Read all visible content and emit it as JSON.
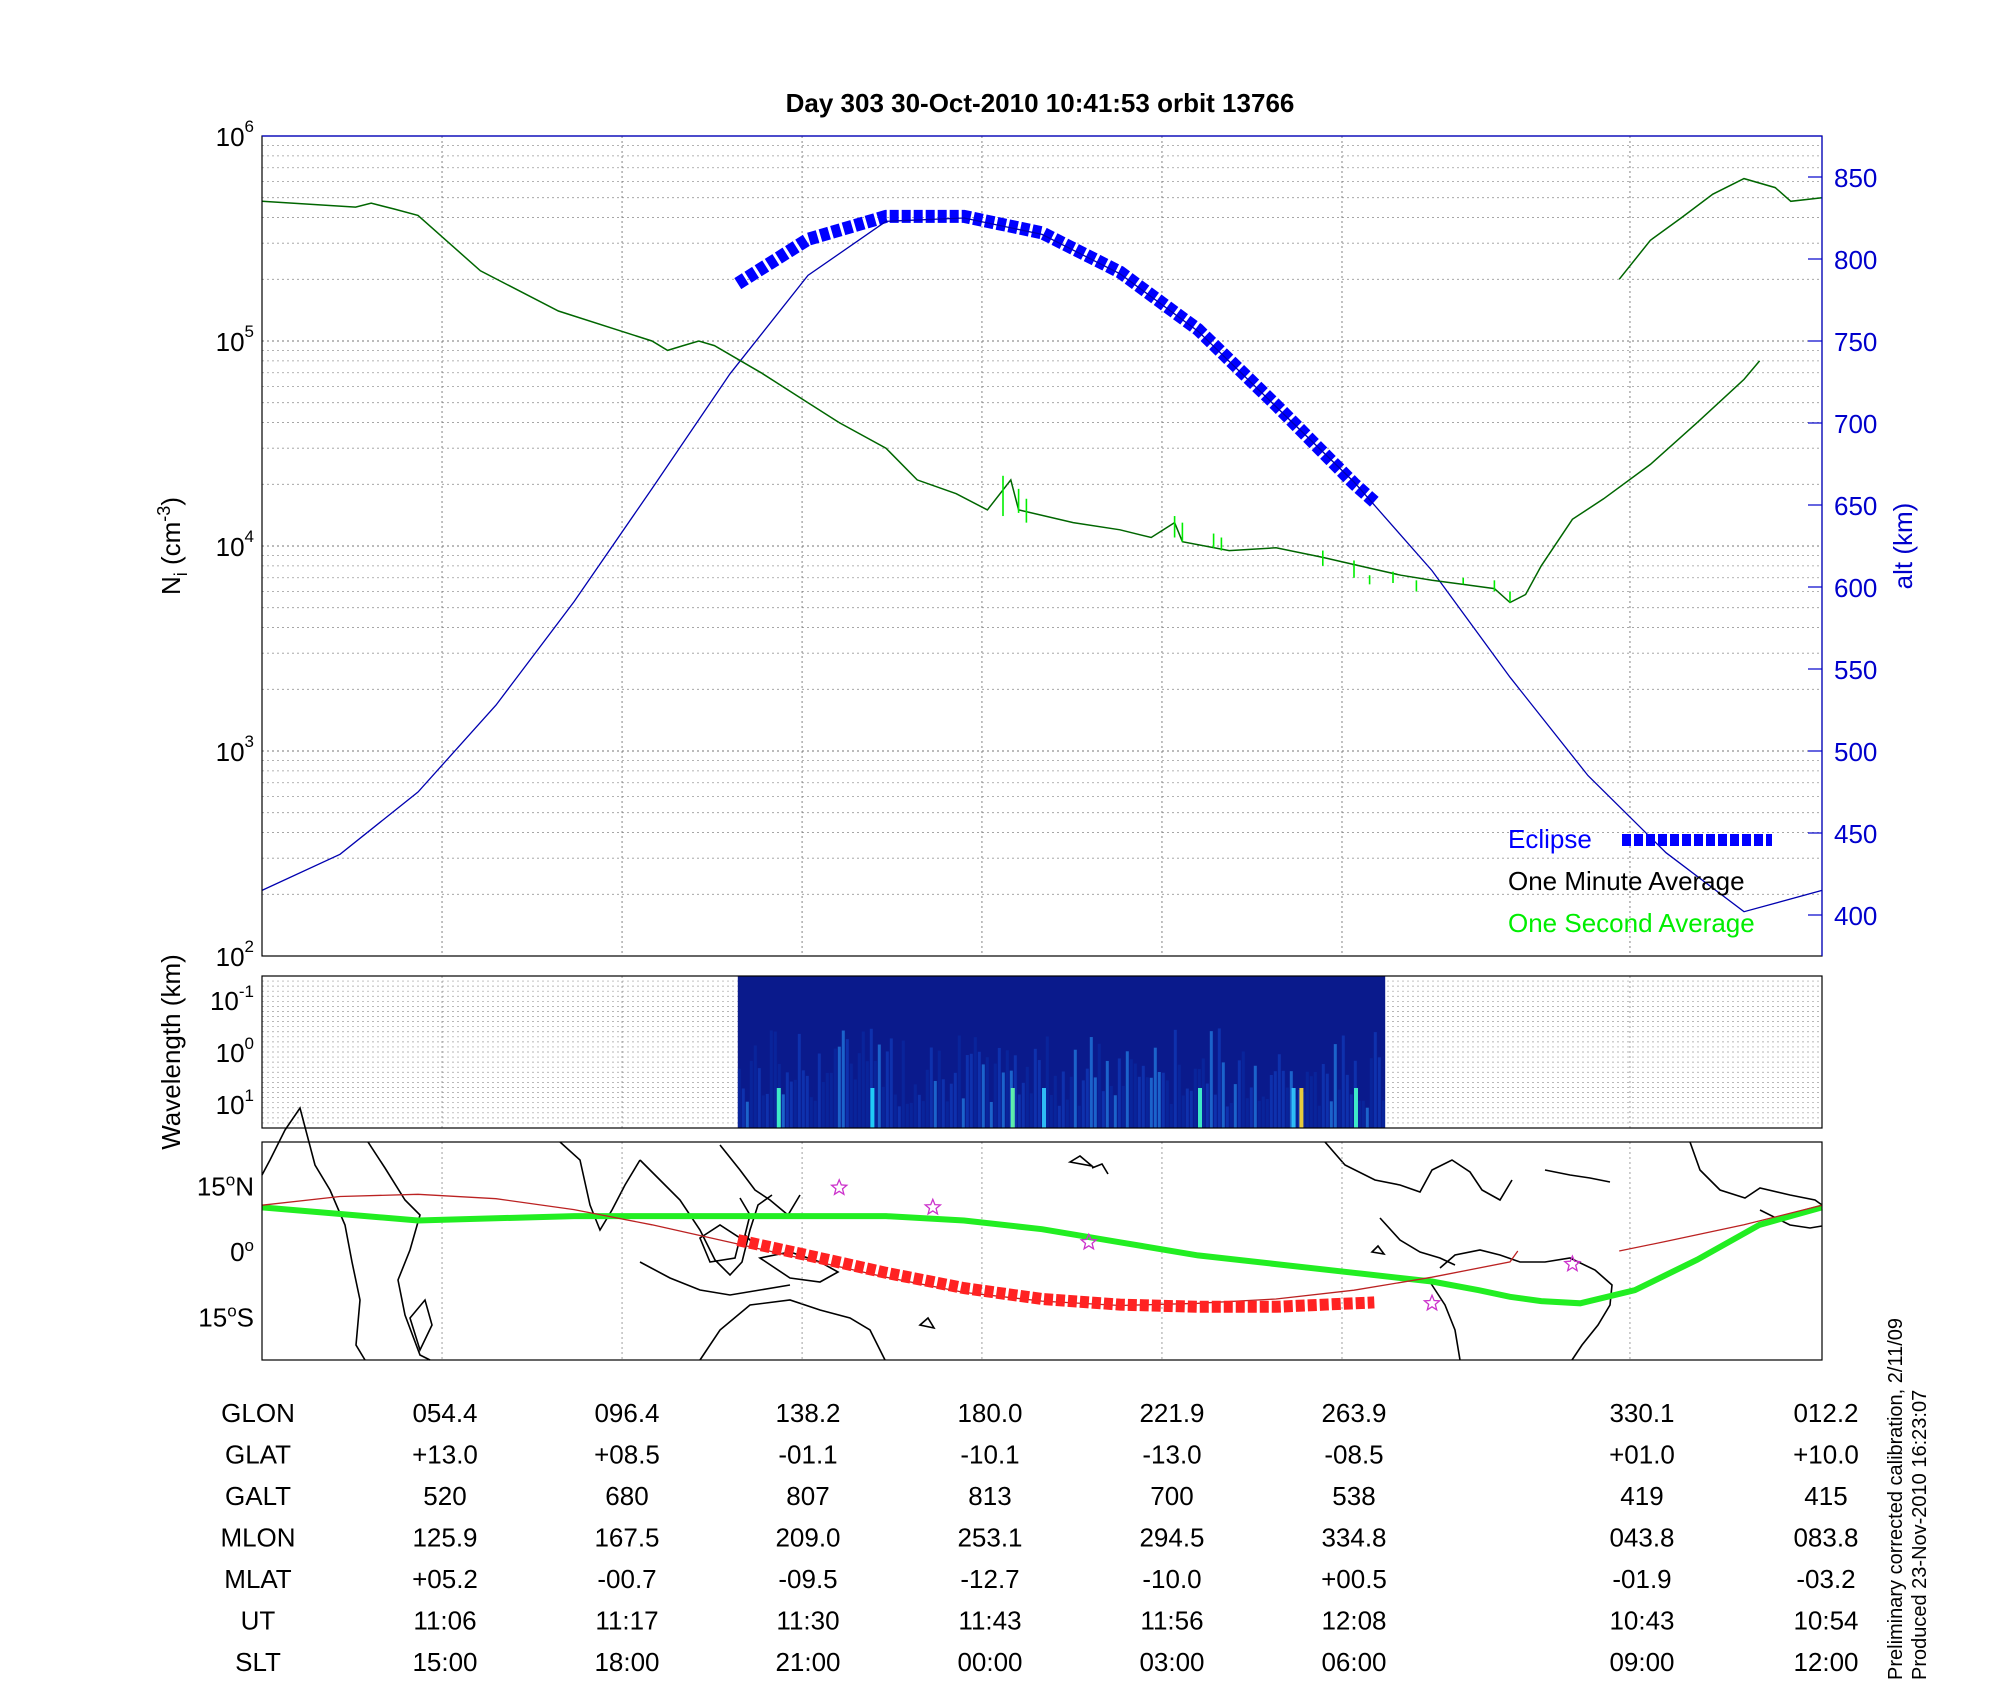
{
  "title": "Day 303  30-Oct-2010 10:41:53   orbit 13766",
  "colors": {
    "eclipse": "#0000ff",
    "altitude_line": "#0000b0",
    "one_minute_average": "#000000",
    "one_second_average": "#00ee00",
    "density_curve": "#006600",
    "right_axis": "#0000cc",
    "map_track": "#ff2222",
    "map_equator": "#22ee22",
    "map_thin_track": "#bb2222",
    "map_stars": "#cc33cc",
    "spectrogram_bg": "#0a1a8c"
  },
  "chart_data": [
    {
      "type": "line",
      "name": "ion-density-panel",
      "ylabel_left": "N",
      "ylabel_left_sub": "i",
      "ylabel_left_units_pre": " (cm",
      "ylabel_left_units_exp": "-3",
      "ylabel_left_units_post": ")",
      "yscale_left": "log",
      "ylim_left": [
        100,
        1000000
      ],
      "yticks_left": [
        {
          "value": 100,
          "base": "10",
          "exp": "2"
        },
        {
          "value": 1000,
          "base": "10",
          "exp": "3"
        },
        {
          "value": 10000,
          "base": "10",
          "exp": "4"
        },
        {
          "value": 100000,
          "base": "10",
          "exp": "5"
        },
        {
          "value": 1000000,
          "base": "10",
          "exp": "6"
        }
      ],
      "ylabel_right": "alt (km)",
      "ylim_right": [
        375,
        875
      ],
      "yticks_right": [
        "400",
        "450",
        "500",
        "550",
        "600",
        "650",
        "700",
        "750",
        "800",
        "850"
      ],
      "grid": true,
      "series": [
        {
          "name": "Eclipse",
          "color": "#0000ff",
          "style": "thick-dotted",
          "points": [
            [
              0.305,
              785
            ],
            [
              0.35,
              812
            ],
            [
              0.4,
              826
            ],
            [
              0.45,
              826
            ],
            [
              0.5,
              816
            ],
            [
              0.55,
              792
            ],
            [
              0.6,
              757
            ],
            [
              0.65,
              711
            ],
            [
              0.7,
              663
            ],
            [
              0.713,
              652
            ]
          ]
        },
        {
          "name": "altitude",
          "color": "#0000b0",
          "points": [
            [
              0.0,
              415
            ],
            [
              0.05,
              437
            ],
            [
              0.1,
              475
            ],
            [
              0.15,
              528
            ],
            [
              0.2,
              591
            ],
            [
              0.25,
              660
            ],
            [
              0.3,
              730
            ],
            [
              0.35,
              790
            ],
            [
              0.4,
              823
            ],
            [
              0.45,
              825
            ],
            [
              0.5,
              815
            ],
            [
              0.55,
              791
            ],
            [
              0.6,
              756
            ],
            [
              0.65,
              710
            ],
            [
              0.7,
              664
            ],
            [
              0.75,
              610
            ],
            [
              0.8,
              545
            ],
            [
              0.85,
              485
            ],
            [
              0.9,
              438
            ],
            [
              0.95,
              402
            ],
            [
              1.0,
              415
            ]
          ]
        },
        {
          "name": "One Minute Average",
          "color": "#006600",
          "segments": [
            [
              [
                0.0,
                480000
              ],
              [
                0.06,
                450000
              ],
              [
                0.07,
                470000
              ],
              [
                0.085,
                440000
              ],
              [
                0.1,
                410000
              ],
              [
                0.14,
                220000
              ],
              [
                0.19,
                140000
              ],
              [
                0.25,
                100000
              ],
              [
                0.26,
                90000
              ],
              [
                0.27,
                95000
              ],
              [
                0.28,
                100000
              ],
              [
                0.29,
                95000
              ],
              [
                0.32,
                70000
              ],
              [
                0.35,
                50000
              ],
              [
                0.37,
                40000
              ],
              [
                0.4,
                30000
              ],
              [
                0.42,
                21000
              ],
              [
                0.445,
                18000
              ],
              [
                0.465,
                15000
              ],
              [
                0.48,
                21000
              ],
              [
                0.485,
                15000
              ],
              [
                0.52,
                13000
              ],
              [
                0.55,
                12000
              ],
              [
                0.57,
                11000
              ],
              [
                0.585,
                13000
              ],
              [
                0.59,
                10500
              ],
              [
                0.62,
                9500
              ],
              [
                0.65,
                9800
              ],
              [
                0.68,
                8800
              ],
              [
                0.71,
                7800
              ],
              [
                0.73,
                7200
              ],
              [
                0.75,
                6800
              ],
              [
                0.77,
                6500
              ],
              [
                0.79,
                6200
              ],
              [
                0.8,
                5300
              ],
              [
                0.81,
                5800
              ],
              [
                0.82,
                8000
              ],
              [
                0.84,
                13500
              ],
              [
                0.86,
                17000
              ],
              [
                0.89,
                25000
              ],
              [
                0.92,
                40000
              ],
              [
                0.95,
                65000
              ],
              [
                0.96,
                80000
              ]
            ],
            [
              [
                0.87,
                200000
              ],
              [
                0.89,
                310000
              ],
              [
                0.91,
                400000
              ],
              [
                0.93,
                520000
              ],
              [
                0.95,
                620000
              ],
              [
                0.97,
                560000
              ],
              [
                0.98,
                480000
              ],
              [
                1.0,
                500000
              ]
            ]
          ]
        },
        {
          "name": "One Second Average",
          "color": "#00ee00",
          "spikes": [
            [
              0.475,
              14000,
              22000
            ],
            [
              0.485,
              14500,
              19000
            ],
            [
              0.49,
              13000,
              17000
            ],
            [
              0.585,
              11000,
              14000
            ],
            [
              0.59,
              10500,
              13000
            ],
            [
              0.61,
              9800,
              11500
            ],
            [
              0.615,
              9500,
              11000
            ],
            [
              0.68,
              8000,
              9500
            ],
            [
              0.7,
              7000,
              8500
            ],
            [
              0.71,
              7200,
              6500
            ],
            [
              0.725,
              6600,
              7500
            ],
            [
              0.74,
              6800,
              6000
            ],
            [
              0.77,
              6500,
              7000
            ],
            [
              0.79,
              6000,
              6800
            ],
            [
              0.8,
              5300,
              6000
            ]
          ]
        }
      ],
      "legend": {
        "position": "bottom-right",
        "entries": [
          "Eclipse",
          "One Minute Average",
          "One Second Average"
        ]
      }
    },
    {
      "type": "heatmap",
      "name": "wavelength-spectrogram",
      "ylabel": "Wavelength (km)",
      "yscale": "log",
      "yticks": [
        {
          "base": "10",
          "exp": "-1"
        },
        {
          "base": "10",
          "exp": "0"
        },
        {
          "base": "10",
          "exp": "1"
        }
      ],
      "data_extent_x": [
        0.305,
        0.72
      ],
      "grid": true
    },
    {
      "type": "scatter",
      "name": "ground-track-map",
      "yticks": [
        {
          "value": 15,
          "label": "15",
          "suffix": "N"
        },
        {
          "value": 0,
          "label": "0",
          "suffix": ""
        },
        {
          "value": -15,
          "label": "15",
          "suffix": "S"
        }
      ],
      "ylim": [
        -25,
        25
      ],
      "series": [
        {
          "name": "magnetic-equator",
          "color": "#22ee22",
          "points": [
            [
              0.0,
              10
            ],
            [
              0.1,
              7
            ],
            [
              0.2,
              8
            ],
            [
              0.3,
              8
            ],
            [
              0.35,
              8
            ],
            [
              0.4,
              8
            ],
            [
              0.45,
              7
            ],
            [
              0.5,
              5
            ],
            [
              0.55,
              2
            ],
            [
              0.6,
              -1
            ],
            [
              0.65,
              -3
            ],
            [
              0.7,
              -5
            ],
            [
              0.75,
              -7
            ],
            [
              0.78,
              -9
            ],
            [
              0.8,
              -10.5
            ],
            [
              0.82,
              -11.5
            ],
            [
              0.845,
              -12
            ],
            [
              0.88,
              -9
            ],
            [
              0.92,
              -2
            ],
            [
              0.96,
              6
            ],
            [
              1.0,
              10
            ]
          ]
        },
        {
          "name": "orbit-track",
          "color": "#bb2222",
          "points": [
            [
              0.0,
              10.5
            ],
            [
              0.05,
              12.5
            ],
            [
              0.1,
              13
            ],
            [
              0.15,
              12
            ],
            [
              0.2,
              9.5
            ],
            [
              0.25,
              6
            ],
            [
              0.3,
              2
            ],
            [
              0.35,
              -2
            ],
            [
              0.4,
              -6
            ],
            [
              0.45,
              -9.5
            ],
            [
              0.5,
              -11.5
            ],
            [
              0.55,
              -12.5
            ],
            [
              0.6,
              -12
            ],
            [
              0.65,
              -11
            ],
            [
              0.7,
              -9
            ],
            [
              0.75,
              -6
            ],
            [
              0.8,
              -2.5
            ],
            [
              0.805,
              0
            ]
          ],
          "tail": [
            [
              0.87,
              0
            ],
            [
              0.9,
              2.2
            ],
            [
              0.95,
              6
            ],
            [
              1.0,
              10.5
            ]
          ]
        },
        {
          "name": "eclipse-track",
          "color": "#ff2222",
          "style": "thick-dotted",
          "points": [
            [
              0.305,
              2.5
            ],
            [
              0.35,
              -1
            ],
            [
              0.4,
              -5
            ],
            [
              0.45,
              -8.5
            ],
            [
              0.5,
              -11
            ],
            [
              0.55,
              -12.3
            ],
            [
              0.6,
              -12.8
            ],
            [
              0.65,
              -12.8
            ],
            [
              0.7,
              -12
            ],
            [
              0.713,
              -11.8
            ]
          ]
        },
        {
          "name": "stations",
          "color": "#cc33cc",
          "marker": "star",
          "points": [
            [
              0.37,
              14.5
            ],
            [
              0.43,
              10
            ],
            [
              0.53,
              2
            ],
            [
              0.75,
              -12
            ],
            [
              0.84,
              -3
            ]
          ]
        }
      ]
    }
  ],
  "table": {
    "row_labels": [
      "GLON",
      "GLAT",
      "GALT",
      "MLON",
      "MLAT",
      "UT",
      "SLT"
    ],
    "columns": [
      [
        "054.4",
        "+13.0",
        "520",
        "125.9",
        "+05.2",
        "11:06",
        "15:00"
      ],
      [
        "096.4",
        "+08.5",
        "680",
        "167.5",
        "-00.7",
        "11:17",
        "18:00"
      ],
      [
        "138.2",
        "-01.1",
        "807",
        "209.0",
        "-09.5",
        "11:30",
        "21:00"
      ],
      [
        "180.0",
        "-10.1",
        "813",
        "253.1",
        "-12.7",
        "11:43",
        "00:00"
      ],
      [
        "221.9",
        "-13.0",
        "700",
        "294.5",
        "-10.0",
        "11:56",
        "03:00"
      ],
      [
        "263.9",
        "-08.5",
        "538",
        "334.8",
        "+00.5",
        "12:08",
        "06:00"
      ],
      [
        "330.1",
        "+01.0",
        "419",
        "043.8",
        "-01.9",
        "10:43",
        "09:00"
      ],
      [
        "012.2",
        "+10.0",
        "415",
        "083.8",
        "-03.2",
        "10:54",
        "12:00"
      ]
    ]
  },
  "footnote": {
    "line1": "Preliminary corrected calibration, 2/11/09",
    "line2": "Produced 23-Nov-2010 16:23:07"
  }
}
